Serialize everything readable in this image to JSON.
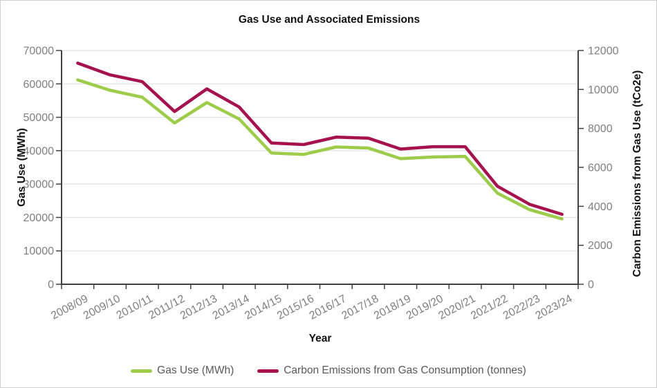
{
  "title": "Gas Use and Associated Emissions",
  "colors": {
    "gas_line": "#9DCB4A",
    "emissions_line": "#A5124D",
    "gridline": "#DBDBDB",
    "axis_line": "#404040",
    "tick_label": "#7F7F7F",
    "legend_text": "#595959",
    "title_text": "#111111"
  },
  "chart_data": {
    "type": "line",
    "title": "Gas Use and Associated Emissions",
    "xlabel": "Year",
    "ylabel_left": "Gas Use (MWh)",
    "ylabel_right": "Carbon Emissions from Gas Use (tCo2e)",
    "ylim_left": [
      0,
      70000
    ],
    "ylim_right": [
      0,
      12000
    ],
    "ytick_step_left": 10000,
    "ytick_step_right": 2000,
    "yticks_left": [
      0,
      10000,
      20000,
      30000,
      40000,
      50000,
      60000,
      70000
    ],
    "yticks_right": [
      0,
      2000,
      4000,
      6000,
      8000,
      10000,
      12000
    ],
    "grid": true,
    "legend_position": "bottom",
    "categories": [
      "2008/09",
      "2009/10",
      "2010/11",
      "2011/12",
      "2012/13",
      "2013/14",
      "2014/15",
      "2015/16",
      "2016/17",
      "2017/18",
      "2018/19",
      "2019/20",
      "2020/21",
      "2021/22",
      "2022/23",
      "2023/24"
    ],
    "series": [
      {
        "name": "Gas Use (MWh)",
        "axis": "left",
        "color": "#9DCB4A",
        "values": [
          61200,
          58100,
          56000,
          48300,
          54400,
          49500,
          39300,
          38900,
          41100,
          40800,
          37600,
          38100,
          38300,
          27300,
          22300,
          19600
        ]
      },
      {
        "name": "Carbon Emissions from Gas Consumption (tonnes)",
        "axis": "right",
        "color": "#A5124D",
        "values": [
          11350,
          10750,
          10400,
          8870,
          10030,
          9100,
          7250,
          7170,
          7550,
          7500,
          6940,
          7060,
          7060,
          5030,
          4100,
          3590
        ]
      }
    ]
  }
}
